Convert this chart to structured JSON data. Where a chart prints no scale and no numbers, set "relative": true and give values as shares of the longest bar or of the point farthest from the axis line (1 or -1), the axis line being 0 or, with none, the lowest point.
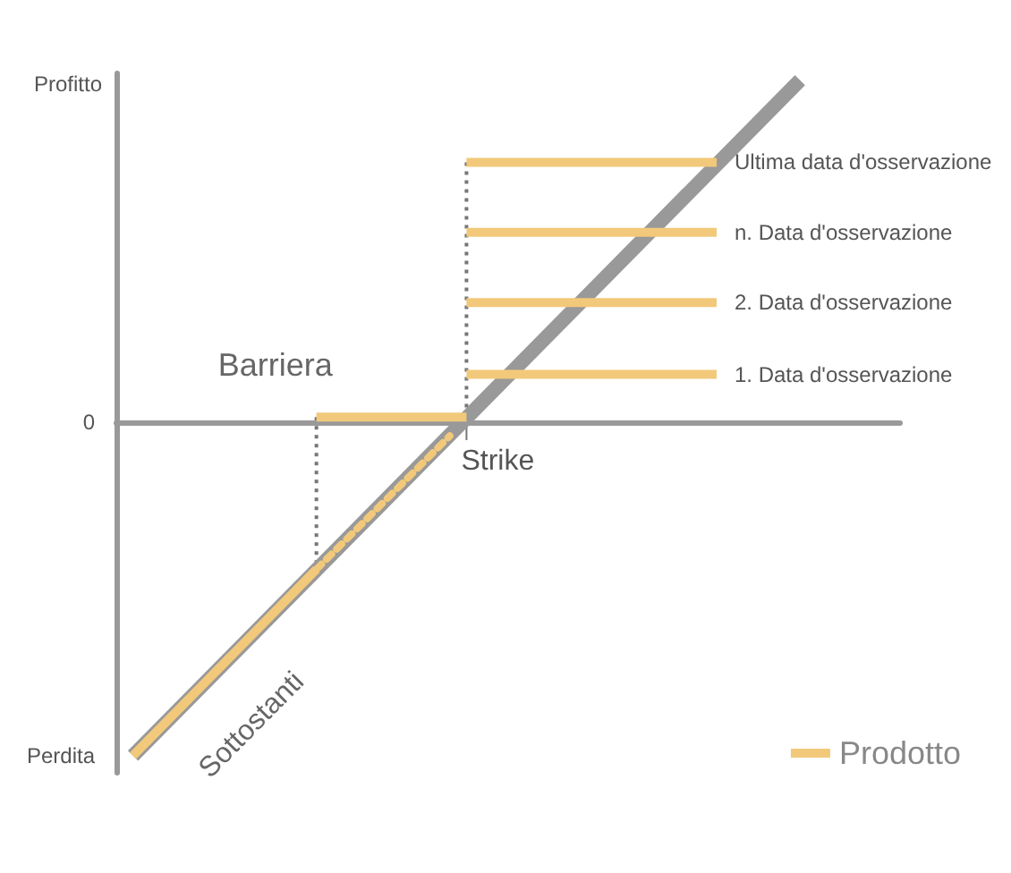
{
  "chart_data": {
    "type": "line",
    "relative": true,
    "ylabel": "Profitto",
    "categories": [
      null,
      null,
      null,
      null,
      null,
      null,
      null,
      null,
      null,
      null,
      null,
      null,
      null,
      null,
      null,
      null,
      null,
      null,
      null,
      null,
      null,
      null,
      null,
      null,
      null,
      null,
      null,
      null,
      null,
      null,
      null,
      null,
      null,
      null,
      null,
      null,
      null,
      null,
      null,
      null,
      null,
      null,
      null,
      null,
      null,
      null,
      null,
      null
    ],
    "series": [
      {
        "color": "#999999",
        "values": [
          null,
          -0.975,
          null,
          null,
          null,
          null,
          null,
          null,
          null,
          null,
          null,
          null,
          null,
          null,
          null,
          null,
          null,
          null,
          null,
          null,
          null,
          null,
          null,
          null,
          null,
          null,
          null,
          null,
          null,
          null,
          null,
          null,
          null,
          null,
          null,
          null,
          null,
          null,
          null,
          null,
          null,
          1,
          null,
          null,
          null,
          null,
          null,
          null
        ]
      },
      {
        "name": "Prodotto",
        "color": "#f2c97a",
        "values": [
          null,
          -0.975,
          null,
          null,
          null,
          null,
          null,
          null,
          null,
          null,
          null,
          null,
          -0.43,
          null,
          null,
          null,
          null,
          null,
          null,
          null,
          null,
          null,
          null,
          null,
          null,
          null,
          null,
          null,
          null,
          null,
          null,
          null,
          null,
          null,
          null,
          null,
          null,
          null,
          null,
          null,
          null,
          null,
          null,
          null,
          null,
          null,
          null,
          null
        ]
      },
      {
        "color": "#f2c97a",
        "line_style": "dotted",
        "values": [
          null,
          null,
          null,
          null,
          null,
          null,
          null,
          null,
          null,
          null,
          null,
          null,
          -0.43,
          null,
          null,
          null,
          null,
          null,
          null,
          null,
          -0.04,
          null,
          null,
          null,
          null,
          null,
          null,
          null,
          null,
          null,
          null,
          null,
          null,
          null,
          null,
          null,
          null,
          null,
          null,
          null,
          null,
          null,
          null,
          null,
          null,
          null,
          null,
          null
        ]
      },
      {
        "color": "#f2c97a",
        "values": [
          null,
          null,
          null,
          null,
          null,
          null,
          null,
          null,
          null,
          null,
          null,
          null,
          0.015,
          null,
          null,
          null,
          null,
          null,
          null,
          null,
          null,
          0.015,
          null,
          null,
          null,
          null,
          null,
          null,
          null,
          null,
          null,
          null,
          null,
          null,
          null,
          null,
          null,
          null,
          null,
          null,
          null,
          null,
          null,
          null,
          null,
          null,
          null,
          null
        ]
      },
      {
        "color": "#f2c97a",
        "values": [
          null,
          null,
          null,
          null,
          null,
          null,
          null,
          null,
          null,
          null,
          null,
          null,
          null,
          null,
          null,
          null,
          null,
          null,
          null,
          null,
          null,
          0.76,
          null,
          null,
          null,
          null,
          null,
          null,
          null,
          null,
          null,
          null,
          null,
          null,
          null,
          null,
          0.76,
          null,
          null,
          null,
          null,
          null,
          null,
          null,
          null,
          null,
          null,
          null
        ]
      },
      {
        "color": "#f2c97a",
        "values": [
          null,
          null,
          null,
          null,
          null,
          null,
          null,
          null,
          null,
          null,
          null,
          null,
          null,
          null,
          null,
          null,
          null,
          null,
          null,
          null,
          null,
          0.555,
          null,
          null,
          null,
          null,
          null,
          null,
          null,
          null,
          null,
          null,
          null,
          null,
          null,
          null,
          0.555,
          null,
          null,
          null,
          null,
          null,
          null,
          null,
          null,
          null,
          null,
          null
        ]
      },
      {
        "color": "#f2c97a",
        "values": [
          null,
          null,
          null,
          null,
          null,
          null,
          null,
          null,
          null,
          null,
          null,
          null,
          null,
          null,
          null,
          null,
          null,
          null,
          null,
          null,
          null,
          0.35,
          null,
          null,
          null,
          null,
          null,
          null,
          null,
          null,
          null,
          null,
          null,
          null,
          null,
          null,
          0.35,
          null,
          null,
          null,
          null,
          null,
          null,
          null,
          null,
          null,
          null,
          null
        ]
      },
      {
        "color": "#f2c97a",
        "values": [
          null,
          null,
          null,
          null,
          null,
          null,
          null,
          null,
          null,
          null,
          null,
          null,
          null,
          null,
          null,
          null,
          null,
          null,
          null,
          null,
          null,
          0.14,
          null,
          null,
          null,
          null,
          null,
          null,
          null,
          null,
          null,
          null,
          null,
          null,
          null,
          null,
          0.14,
          null,
          null,
          null,
          null,
          null,
          null,
          null,
          null,
          null,
          null,
          null
        ]
      }
    ],
    "annotations": [
      "Barriera",
      "Sottostanti",
      "Strike",
      "0",
      "Perdita",
      "Ultima data d'osservazione",
      "n. Data d'osservazione",
      "2. Data d'osservazione",
      "1. Data d'osservazione"
    ],
    "marker": "none",
    "legend": "bottom right"
  }
}
